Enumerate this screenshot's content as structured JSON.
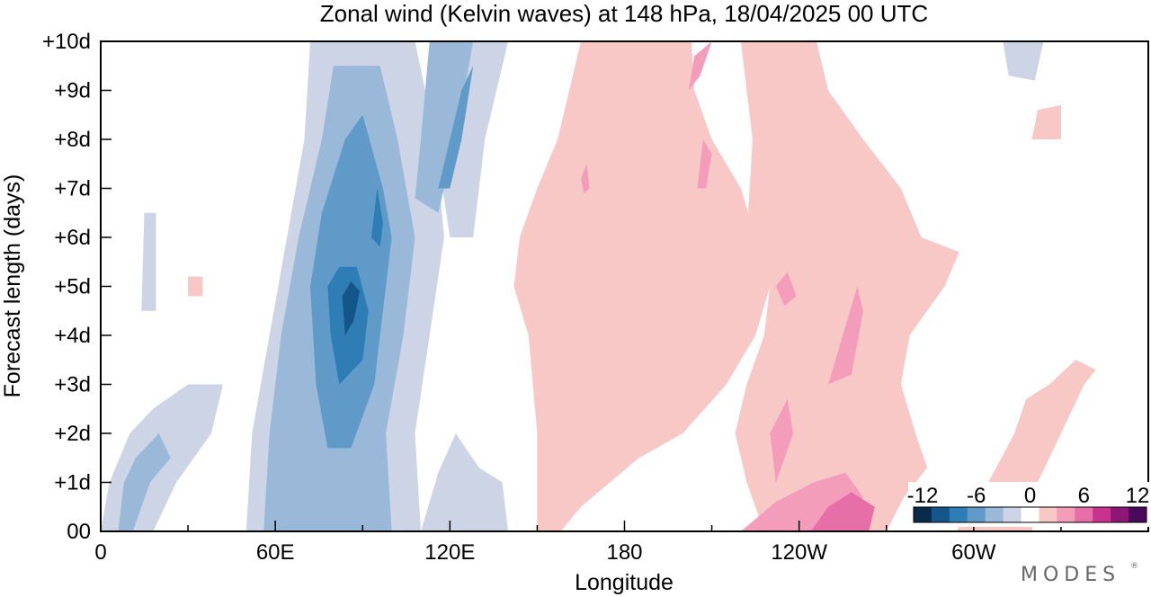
{
  "colors": {
    "neg12": "#0a2a4a",
    "neg10": "#15568a",
    "neg8": "#2e7db5",
    "neg6": "#5f9ac9",
    "neg4": "#9ab8d8",
    "neg2": "#cdd4e6",
    "zero": "#ffffff",
    "pos2": "#f8c8c6",
    "pos4": "#f39dbb",
    "pos6": "#e56fa6",
    "pos8": "#c7338e",
    "pos10": "#8e1675",
    "pos12": "#4a0a5c"
  },
  "chart_data": {
    "type": "heatmap",
    "title": "Zonal wind (Kelvin waves) at 148 hPa,  18/04/2025  00 UTC",
    "xlabel": "Longitude",
    "ylabel": "Forecast length (days)",
    "x_ticks": [
      "0",
      "60E",
      "120E",
      "180",
      "120W",
      "60W"
    ],
    "x_tick_values": [
      0,
      60,
      120,
      180,
      240,
      300
    ],
    "x_range": [
      0,
      360
    ],
    "y_ticks": [
      "00",
      "+1d",
      "+2d",
      "+3d",
      "+4d",
      "+5d",
      "+6d",
      "+7d",
      "+8d",
      "+9d",
      "+10d"
    ],
    "y_tick_values": [
      0,
      1,
      2,
      3,
      4,
      5,
      6,
      7,
      8,
      9,
      10
    ],
    "y_range": [
      0,
      10
    ],
    "colorbar": {
      "labels": [
        "-12",
        "-6",
        "0",
        "6",
        "12"
      ],
      "label_values": [
        -12,
        -6,
        0,
        6,
        12
      ],
      "levels": [
        -12,
        -10,
        -8,
        -6,
        -4,
        -2,
        0,
        2,
        4,
        6,
        8,
        10,
        12
      ],
      "colors": [
        "#0a2a4a",
        "#15568a",
        "#2e7db5",
        "#5f9ac9",
        "#9ab8d8",
        "#cdd4e6",
        "#ffffff",
        "#f8c8c6",
        "#f39dbb",
        "#e56fa6",
        "#c7338e",
        "#8e1675",
        "#4a0a5c"
      ]
    },
    "features": [
      {
        "name": "easterly-band-main",
        "level": -2,
        "polygon": [
          [
            70,
            0
          ],
          [
            50,
            0
          ],
          [
            52,
            2
          ],
          [
            58,
            4
          ],
          [
            64,
            6
          ],
          [
            70,
            8
          ],
          [
            72,
            10
          ],
          [
            108,
            10
          ],
          [
            115,
            8
          ],
          [
            118,
            6
          ],
          [
            113,
            4
          ],
          [
            108,
            2
          ],
          [
            110,
            0
          ]
        ]
      },
      {
        "name": "easterly-band-east",
        "level": -2,
        "polygon": [
          [
            118,
            10
          ],
          [
            140,
            10
          ],
          [
            132,
            8
          ],
          [
            128,
            6
          ],
          [
            120,
            6
          ],
          [
            115,
            8
          ]
        ]
      },
      {
        "name": "easterly-band-west",
        "level": -2,
        "polygon": [
          [
            0,
            0
          ],
          [
            18,
            0
          ],
          [
            26,
            1
          ],
          [
            38,
            2
          ],
          [
            42,
            3
          ],
          [
            30,
            3
          ],
          [
            18,
            2.5
          ],
          [
            10,
            2
          ],
          [
            3,
            1
          ]
        ]
      },
      {
        "name": "easterly-strip-low",
        "level": -2,
        "polygon": [
          [
            110,
            0
          ],
          [
            140,
            0
          ],
          [
            138,
            1
          ],
          [
            130,
            1.3
          ],
          [
            122,
            2
          ],
          [
            116,
            1.2
          ]
        ]
      },
      {
        "name": "easterly-patch-west",
        "level": -2,
        "polygon": [
          [
            14,
            4.5
          ],
          [
            19,
            4.5
          ],
          [
            19,
            6.5
          ],
          [
            15,
            6.5
          ]
        ]
      },
      {
        "name": "easterly-patch-far-east",
        "level": -2,
        "polygon": [
          [
            310,
            10
          ],
          [
            324,
            10
          ],
          [
            321,
            9.2
          ],
          [
            312,
            9.3
          ]
        ]
      },
      {
        "name": "easterly-mid",
        "level": -4,
        "polygon": [
          [
            82,
            0
          ],
          [
            56,
            0
          ],
          [
            58,
            2
          ],
          [
            62,
            4
          ],
          [
            68,
            6
          ],
          [
            76,
            8
          ],
          [
            80,
            9.5
          ],
          [
            96,
            9.5
          ],
          [
            102,
            8
          ],
          [
            108,
            6
          ],
          [
            104,
            4
          ],
          [
            98,
            2
          ],
          [
            100,
            0
          ]
        ]
      },
      {
        "name": "easterly-mid-east",
        "level": -4,
        "polygon": [
          [
            113,
            10
          ],
          [
            128,
            10
          ],
          [
            122,
            8
          ],
          [
            116,
            6.5
          ],
          [
            108,
            6.8
          ],
          [
            110,
            8
          ]
        ]
      },
      {
        "name": "easterly-mid-west",
        "level": -4,
        "polygon": [
          [
            6,
            0
          ],
          [
            11,
            0
          ],
          [
            17,
            1
          ],
          [
            24,
            1.5
          ],
          [
            20,
            2
          ],
          [
            12,
            1.5
          ],
          [
            8,
            1
          ]
        ]
      },
      {
        "name": "easterly-strong",
        "level": -6,
        "polygon": [
          [
            86,
            1.7
          ],
          [
            78,
            1.7
          ],
          [
            74,
            3
          ],
          [
            72,
            5
          ],
          [
            76,
            6.5
          ],
          [
            84,
            8
          ],
          [
            90,
            8.5
          ],
          [
            97,
            7
          ],
          [
            100,
            6
          ],
          [
            97,
            4.5
          ],
          [
            94,
            3
          ]
        ]
      },
      {
        "name": "easterly-strong-east",
        "level": -6,
        "polygon": [
          [
            116,
            7
          ],
          [
            124,
            9
          ],
          [
            128,
            9.5
          ],
          [
            124,
            8
          ],
          [
            120,
            7
          ]
        ]
      },
      {
        "name": "easterly-core",
        "level": -8,
        "polygon": [
          [
            82,
            3
          ],
          [
            79,
            4
          ],
          [
            78,
            5
          ],
          [
            82,
            5.4
          ],
          [
            88,
            5.4
          ],
          [
            92,
            4.5
          ],
          [
            90,
            3.5
          ]
        ]
      },
      {
        "name": "easterly-core-north",
        "level": -8,
        "polygon": [
          [
            93,
            6
          ],
          [
            95,
            7
          ],
          [
            97,
            6.3
          ],
          [
            96,
            5.8
          ]
        ]
      },
      {
        "name": "easterly-darkest",
        "level": -10,
        "polygon": [
          [
            84,
            4
          ],
          [
            83,
            4.8
          ],
          [
            86,
            5.1
          ],
          [
            89,
            4.9
          ],
          [
            87,
            4.3
          ]
        ]
      },
      {
        "name": "westerly-wide",
        "level": 2,
        "polygon": [
          [
            150,
            0
          ],
          [
            158,
            0
          ],
          [
            165,
            0.5
          ],
          [
            185,
            1.5
          ],
          [
            200,
            2
          ],
          [
            215,
            3
          ],
          [
            225,
            4
          ],
          [
            230,
            5
          ],
          [
            225,
            6
          ],
          [
            220,
            7
          ],
          [
            210,
            8
          ],
          [
            204,
            9
          ],
          [
            203,
            10
          ],
          [
            165,
            10
          ],
          [
            157,
            8
          ],
          [
            150,
            7
          ],
          [
            144,
            6
          ],
          [
            142,
            5
          ],
          [
            147,
            4
          ],
          [
            150,
            2
          ]
        ]
      },
      {
        "name": "westerly-east",
        "level": 2,
        "polygon": [
          [
            228,
            0
          ],
          [
            270,
            0
          ],
          [
            276,
            0.7
          ],
          [
            284,
            1.3
          ],
          [
            280,
            2
          ],
          [
            275,
            3
          ],
          [
            278,
            4
          ],
          [
            290,
            5
          ],
          [
            295,
            5.7
          ],
          [
            282,
            6
          ],
          [
            275,
            7
          ],
          [
            262,
            8
          ],
          [
            250,
            9
          ],
          [
            246,
            10
          ],
          [
            220,
            10
          ],
          [
            224,
            8
          ],
          [
            222,
            6
          ],
          [
            230,
            5
          ],
          [
            228,
            4
          ],
          [
            222,
            3
          ],
          [
            218,
            2
          ],
          [
            222,
            1
          ]
        ]
      },
      {
        "name": "westerly-far-east",
        "level": 2,
        "polygon": [
          [
            294,
            0
          ],
          [
            320,
            0
          ],
          [
            322,
            1
          ],
          [
            330,
            2
          ],
          [
            338,
            3
          ],
          [
            342,
            3.3
          ],
          [
            335,
            3.5
          ],
          [
            326,
            3
          ],
          [
            318,
            2.7
          ],
          [
            314,
            2
          ],
          [
            305,
            1
          ]
        ]
      },
      {
        "name": "westerly-patch-1",
        "level": 2,
        "polygon": [
          [
            320,
            8
          ],
          [
            330,
            8
          ],
          [
            330,
            8.7
          ],
          [
            322,
            8.6
          ]
        ]
      },
      {
        "name": "westerly-patch-2",
        "level": 2,
        "polygon": [
          [
            30,
            4.8
          ],
          [
            35,
            4.8
          ],
          [
            35,
            5.2
          ],
          [
            30,
            5.2
          ]
        ]
      },
      {
        "name": "westerly-moderate",
        "level": 4,
        "polygon": [
          [
            220,
            0
          ],
          [
            258,
            0
          ],
          [
            262,
            0.7
          ],
          [
            256,
            1.2
          ],
          [
            245,
            1
          ],
          [
            232,
            0.6
          ]
        ]
      },
      {
        "name": "westerly-moderate-2",
        "level": 4,
        "polygon": [
          [
            250,
            3
          ],
          [
            260,
            5
          ],
          [
            262,
            4.5
          ],
          [
            258,
            3.2
          ]
        ]
      },
      {
        "name": "westerly-moderate-3",
        "level": 4,
        "polygon": [
          [
            232,
            1
          ],
          [
            230,
            2
          ],
          [
            236,
            2.7
          ],
          [
            238,
            2
          ]
        ]
      },
      {
        "name": "westerly-moderate-4",
        "level": 4,
        "polygon": [
          [
            205,
            7
          ],
          [
            207,
            8
          ],
          [
            210,
            7.7
          ],
          [
            208,
            7
          ]
        ]
      },
      {
        "name": "westerly-moderate-5",
        "level": 4,
        "polygon": [
          [
            202,
            9
          ],
          [
            204,
            9.7
          ],
          [
            210,
            10
          ],
          [
            206,
            9.3
          ]
        ]
      },
      {
        "name": "westerly-moderate-6",
        "level": 4,
        "polygon": [
          [
            165,
            7.2
          ],
          [
            167,
            7.5
          ],
          [
            168,
            7
          ],
          [
            166,
            6.9
          ]
        ]
      },
      {
        "name": "westerly-moderate-7",
        "level": 4,
        "polygon": [
          [
            232,
            5
          ],
          [
            236,
            5.3
          ],
          [
            239,
            4.8
          ],
          [
            235,
            4.6
          ]
        ]
      },
      {
        "name": "westerly-strong",
        "level": 6,
        "polygon": [
          [
            244,
            0
          ],
          [
            264,
            0
          ],
          [
            266,
            0.5
          ],
          [
            258,
            0.8
          ],
          [
            250,
            0.5
          ]
        ]
      }
    ]
  },
  "brand": "MODES"
}
